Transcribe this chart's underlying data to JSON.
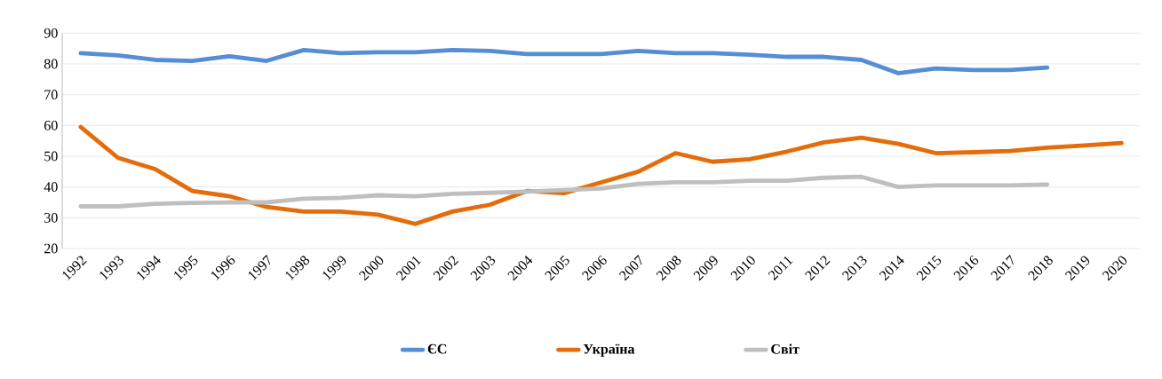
{
  "chart_data": {
    "type": "line",
    "categories": [
      "1992",
      "1993",
      "1994",
      "1995",
      "1996",
      "1997",
      "1998",
      "1999",
      "2000",
      "2001",
      "2002",
      "2003",
      "2004",
      "2005",
      "2006",
      "2007",
      "2008",
      "2009",
      "2010",
      "2011",
      "2012",
      "2013",
      "2014",
      "2015",
      "2016",
      "2017",
      "2018",
      "2019",
      "2020"
    ],
    "series": [
      {
        "name": "ЄС",
        "color": "#558ed5",
        "values": [
          83.5,
          82.8,
          81.3,
          81,
          82.5,
          81,
          84.5,
          83.5,
          83.8,
          83.8,
          84.5,
          84.2,
          83.2,
          83.2,
          83.2,
          84.2,
          83.5,
          83.5,
          83,
          82.3,
          82.3,
          81.3,
          77,
          78.5,
          78,
          78,
          78.8,
          null,
          null
        ]
      },
      {
        "name": "Україна",
        "color": "#e46c0a",
        "values": [
          59.5,
          49.5,
          45.8,
          38.7,
          37,
          33.5,
          32,
          32,
          31,
          28,
          32,
          34.2,
          38.7,
          38,
          41.5,
          45,
          51,
          48.2,
          49,
          51.5,
          54.5,
          56,
          54,
          51,
          51.3,
          51.7,
          52.8,
          53.5,
          54.3
        ]
      },
      {
        "name": "Світ",
        "color": "#bfbfbf",
        "values": [
          33.7,
          33.7,
          34.5,
          34.8,
          35,
          35,
          36.2,
          36.5,
          37.3,
          37,
          37.8,
          38.1,
          38.5,
          39,
          39.5,
          41,
          41.5,
          41.5,
          42,
          42,
          43,
          43.3,
          40,
          40.5,
          40.5,
          40.5,
          40.8,
          null,
          null
        ]
      }
    ],
    "ylim": [
      20,
      90
    ],
    "yticks": [
      20,
      30,
      40,
      50,
      60,
      70,
      80,
      90
    ],
    "grid": "y",
    "legend": "bottom",
    "marker": "none",
    "line_style": "solid"
  }
}
